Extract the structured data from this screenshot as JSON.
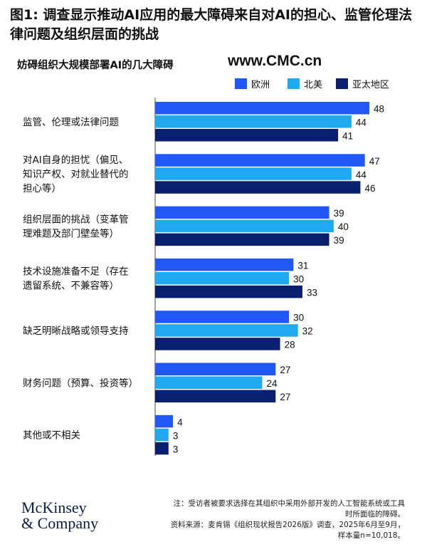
{
  "title": "图1: 调查显示推动AI应用的最大障碍来自对AI的担心、监管伦理法律问题及组织层面的挑战",
  "subtitle": "妨碍组织大规模部署AI的几大障碍",
  "watermark": "www.CMC.cn",
  "legend": [
    {
      "label": "欧洲",
      "color": "#2157f5"
    },
    {
      "label": "北美",
      "color": "#1fa9f0"
    },
    {
      "label": "亚太地区",
      "color": "#0a1f6e"
    }
  ],
  "chart_data": {
    "type": "bar",
    "orientation": "horizontal",
    "categories": [
      [
        "监管、伦理或法律问题"
      ],
      [
        "对AI自身的担忧（偏见、",
        "知识产权、对就业替代的",
        "担心等）"
      ],
      [
        "组织层面的挑战（变革管",
        "理难题及部门壁垒等）"
      ],
      [
        "技术设施准备不足（存在",
        "遗留系统、不兼容等）"
      ],
      [
        "缺乏明晰战略或领导支持"
      ],
      [
        "财务问题（预算、投资等）"
      ],
      [
        "其他或不相关"
      ]
    ],
    "series": [
      {
        "name": "欧洲",
        "color": "#2157f5",
        "values": [
          48,
          47,
          39,
          31,
          30,
          27,
          4
        ]
      },
      {
        "name": "北美",
        "color": "#1fa9f0",
        "values": [
          44,
          44,
          40,
          30,
          32,
          24,
          3
        ]
      },
      {
        "name": "亚太地区",
        "color": "#0a1f6e",
        "values": [
          41,
          46,
          39,
          33,
          28,
          27,
          3
        ]
      }
    ],
    "xlim": [
      0,
      48
    ],
    "grid": false,
    "legend_position": "top-right"
  },
  "footnote": {
    "line1": "注：受访者被要求选择在其组织中采用外部开发的人工智能系统或工具",
    "line2": "时所面临的障碍。",
    "line3": "资料来源：麦肯锡《组织现状报告2026版》调查，2025年6月至9月，",
    "line4": "样本量n=10,018。"
  },
  "logo": {
    "line1": "McKinsey",
    "line2": "& Company"
  }
}
